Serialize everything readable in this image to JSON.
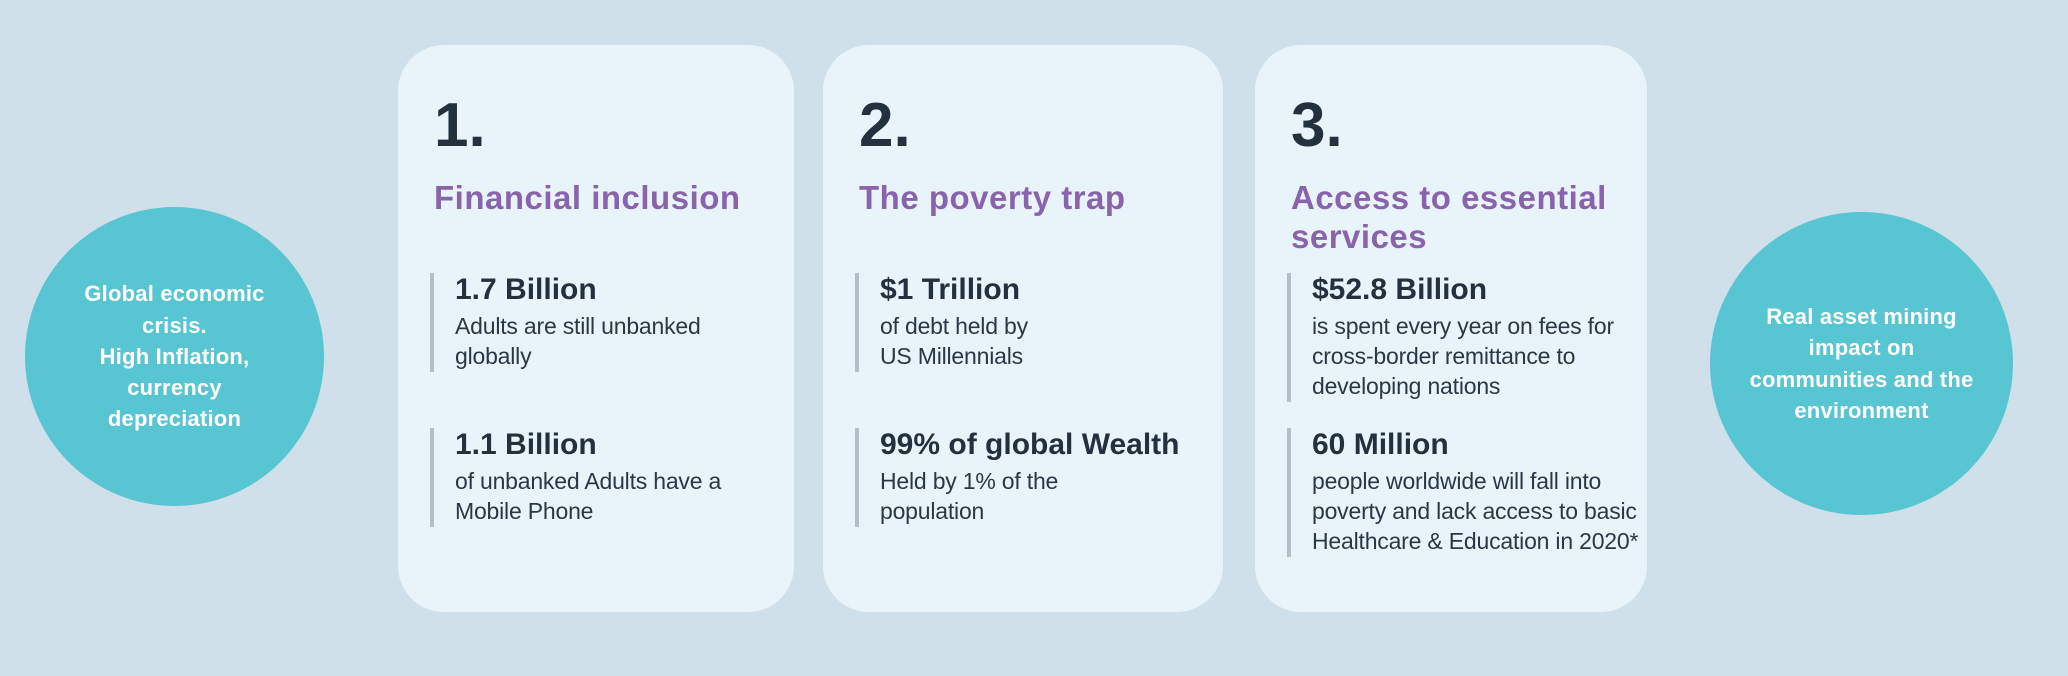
{
  "colors": {
    "background": "#cfe0eb",
    "card_background": "#e9f4fa",
    "circle_teal": "#58c5d2",
    "heading_purple": "#8a63ad",
    "text_dark": "#23303e",
    "divider_gray": "#b3bfc7",
    "circle_text": "#ffffff"
  },
  "left_circle": {
    "text": "Global economic\ncrisis.\nHigh Inflation,\ncurrency\ndepreciation"
  },
  "right_circle": {
    "text": "Real asset  mining\nimpact on\ncommunities and the\nenvironment"
  },
  "cards": [
    {
      "number": "1.",
      "title": "Financial inclusion",
      "stats": [
        {
          "value": "1.7 Billion",
          "description": "Adults are still unbanked\nglobally"
        },
        {
          "value": "1.1 Billion",
          "description": "of unbanked Adults have a\nMobile Phone"
        }
      ]
    },
    {
      "number": "2.",
      "title": "The poverty trap",
      "stats": [
        {
          "value": "$1 Trillion",
          "description": "of debt held by\nUS Millennials"
        },
        {
          "value": "99% of global Wealth",
          "description": "Held by 1% of the\npopulation"
        }
      ]
    },
    {
      "number": "3.",
      "title": "Access to essential\nservices",
      "stats": [
        {
          "value": "$52.8 Billion",
          "description": "is spent every year on fees for\ncross-border remittance to\ndeveloping nations"
        },
        {
          "value": "60 Million",
          "description": "people worldwide will fall into\npoverty and lack access to basic\nHealthcare & Education in 2020*"
        }
      ]
    }
  ]
}
